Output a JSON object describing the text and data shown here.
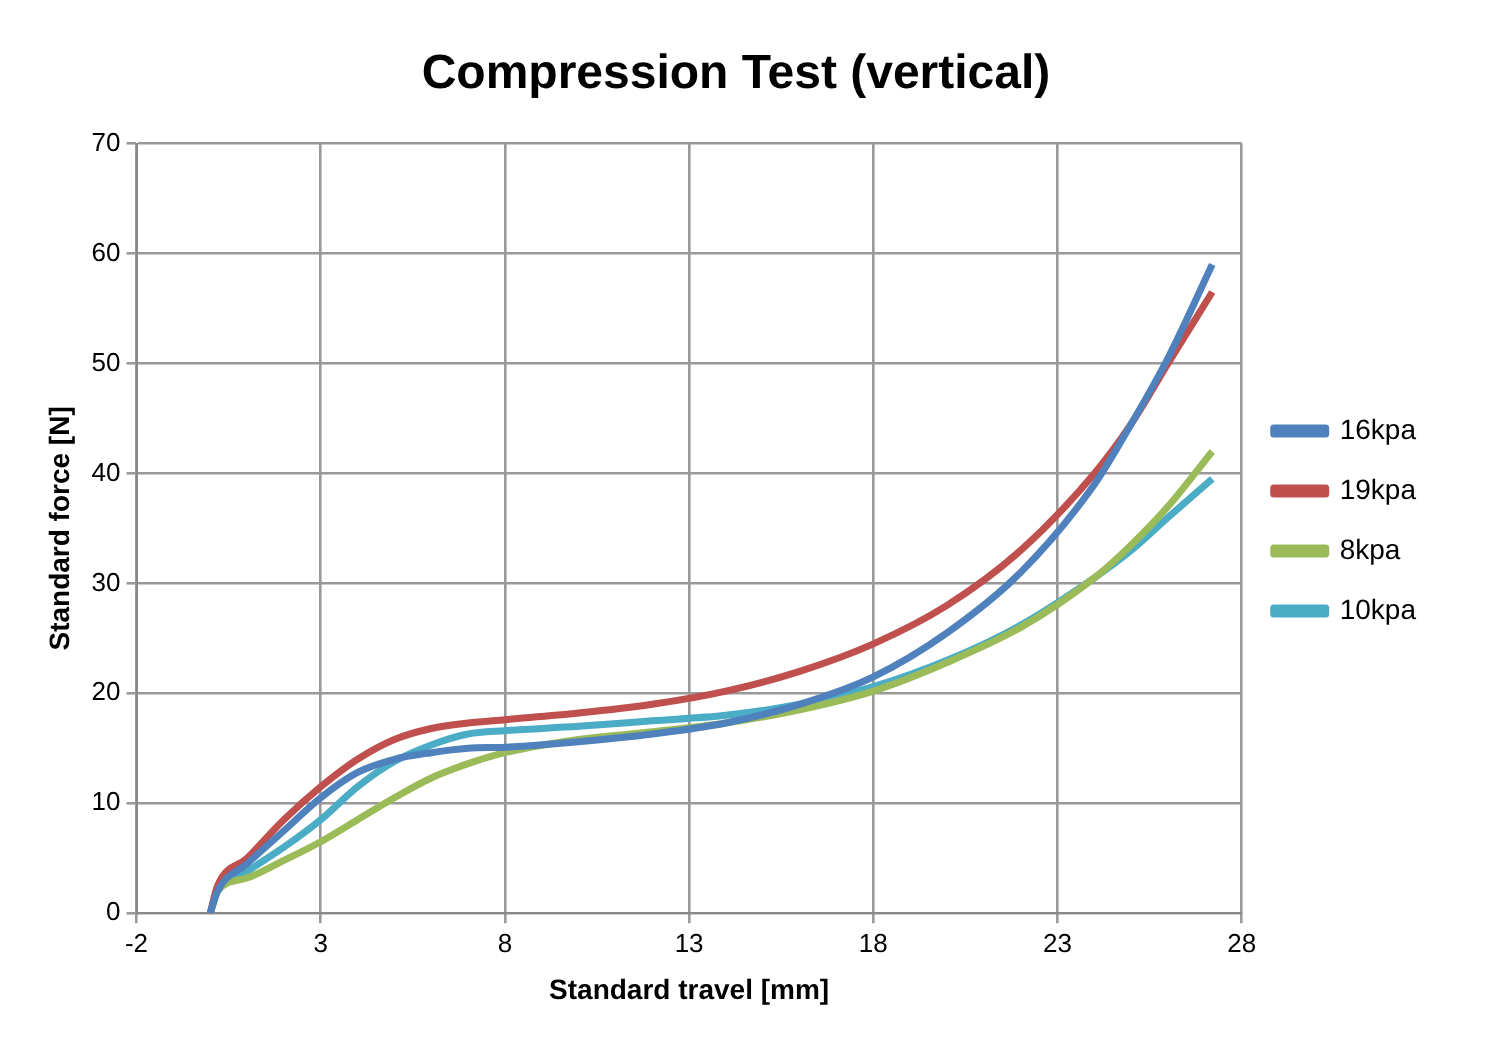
{
  "chart_data": {
    "type": "line",
    "title": "Compression Test (vertical)",
    "xlabel": "Standard travel [mm]",
    "ylabel": "Standard force [N]",
    "x": [
      0,
      0.2,
      1,
      2,
      3,
      4,
      5,
      6,
      7,
      8,
      10,
      12,
      14,
      16,
      18,
      20,
      22,
      24,
      25,
      26,
      27.2
    ],
    "series": [
      {
        "name": "16kpa",
        "color": "#4f81bd",
        "values": [
          0,
          2,
          4.5,
          7.5,
          10.5,
          12.8,
          14,
          14.6,
          15,
          15.1,
          15.6,
          16.3,
          17.3,
          19,
          21.5,
          25.5,
          31,
          39,
          44.5,
          50.5,
          59
        ]
      },
      {
        "name": "19kpa",
        "color": "#c0504d",
        "values": [
          0,
          2.5,
          5,
          8.5,
          11.5,
          14,
          15.8,
          16.8,
          17.3,
          17.6,
          18.2,
          19,
          20.2,
          22,
          24.5,
          28,
          33,
          40,
          44.5,
          50,
          56.5
        ]
      },
      {
        "name": "8kpa",
        "color": "#9bbb59",
        "values": [
          0,
          2,
          3.2,
          4.8,
          6.5,
          8.5,
          10.5,
          12.3,
          13.6,
          14.6,
          15.8,
          16.5,
          17.3,
          18.5,
          20.2,
          22.8,
          26,
          30.5,
          33.5,
          37,
          42
        ]
      },
      {
        "name": "10kpa",
        "color": "#4bacc6",
        "values": [
          0,
          2,
          3.8,
          6,
          8.5,
          11.5,
          13.8,
          15.3,
          16.3,
          16.6,
          17,
          17.5,
          18,
          19,
          20.6,
          23,
          26.2,
          30.5,
          33,
          36,
          39.5
        ]
      }
    ],
    "xlim": [
      -2,
      28
    ],
    "xticks": [
      -2,
      3,
      8,
      13,
      18,
      23,
      28
    ],
    "ylim": [
      0,
      70
    ],
    "yticks": [
      0,
      10,
      20,
      30,
      40,
      50,
      60,
      70
    ],
    "grid": true,
    "legend": "right",
    "marker": "none",
    "line_style": "solid"
  }
}
